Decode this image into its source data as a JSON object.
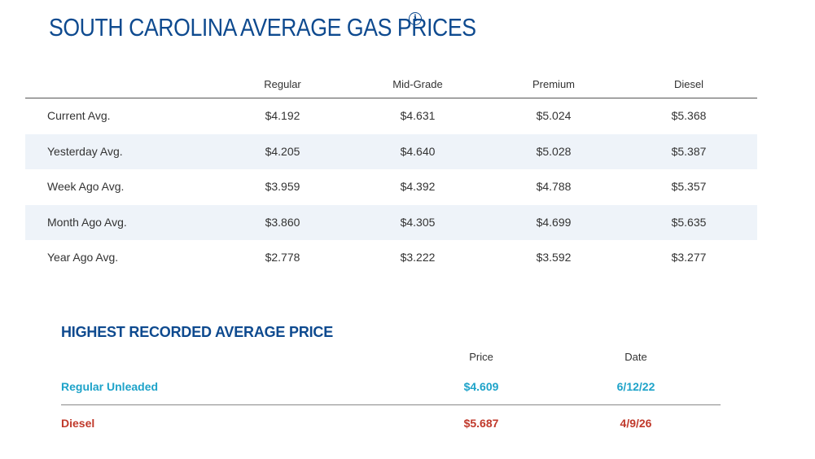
{
  "header": {
    "title": "SOUTH CAROLINA AVERAGE GAS PRICES",
    "info_icon": "info-circle-icon"
  },
  "averages": {
    "columns": [
      "Regular",
      "Mid-Grade",
      "Premium",
      "Diesel"
    ],
    "rows": [
      {
        "label": "Current Avg.",
        "values": [
          "$4.192",
          "$4.631",
          "$5.024",
          "$5.368"
        ]
      },
      {
        "label": "Yesterday Avg.",
        "values": [
          "$4.205",
          "$4.640",
          "$5.028",
          "$5.387"
        ]
      },
      {
        "label": "Week Ago Avg.",
        "values": [
          "$3.959",
          "$4.392",
          "$4.788",
          "$5.357"
        ]
      },
      {
        "label": "Month Ago Avg.",
        "values": [
          "$3.860",
          "$4.305",
          "$4.699",
          "$5.635"
        ]
      },
      {
        "label": "Year Ago Avg.",
        "values": [
          "$2.778",
          "$3.222",
          "$3.592",
          "$3.277"
        ]
      }
    ]
  },
  "highest_recorded": {
    "title": "HIGHEST RECORDED AVERAGE PRICE",
    "columns": {
      "price": "Price",
      "date": "Date"
    },
    "rows": [
      {
        "label": "Regular Unleaded",
        "price": "$4.609",
        "date": "6/12/22"
      },
      {
        "label": "Diesel",
        "price": "$5.687",
        "date": "4/9/26"
      }
    ]
  },
  "colors": {
    "title_blue": "#0e4a8f",
    "row_shade": "#eef3f9",
    "regular_teal": "#1ea3c9",
    "diesel_red": "#c0392b"
  }
}
